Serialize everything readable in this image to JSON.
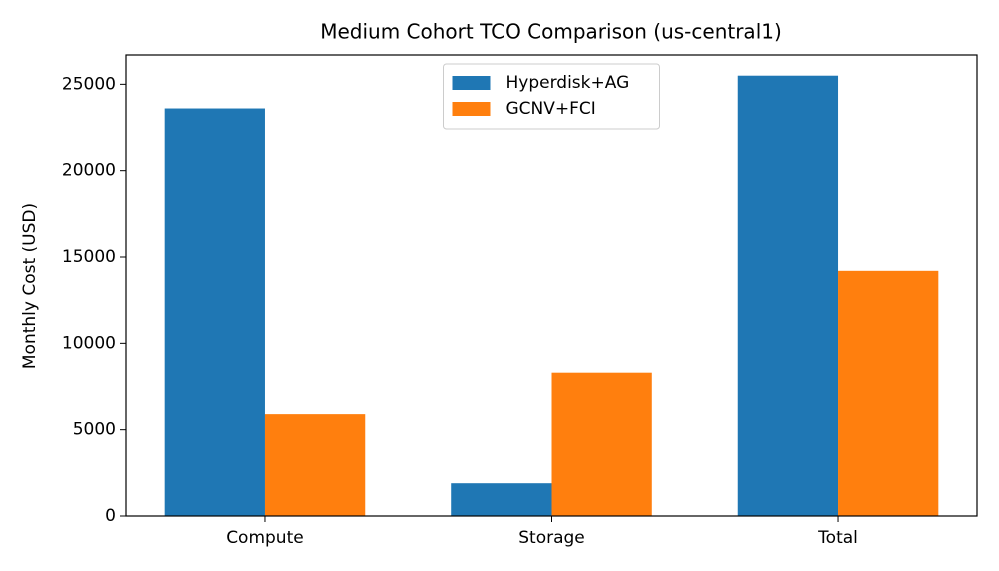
{
  "chart_data": {
    "type": "bar",
    "title": "Medium Cohort TCO Comparison (us-central1)",
    "ylabel": "Monthly Cost (USD)",
    "categories": [
      "Compute",
      "Storage",
      "Total"
    ],
    "series": [
      {
        "name": "Hyperdisk+AG",
        "color": "#1f77b4",
        "values": [
          23600,
          1900,
          25500
        ]
      },
      {
        "name": "GCNV+FCI",
        "color": "#ff7f0e",
        "values": [
          5900,
          8300,
          14200
        ]
      }
    ],
    "ylim": [
      0,
      26700
    ],
    "yticks": [
      0,
      5000,
      10000,
      15000,
      20000,
      25000
    ],
    "grid": false,
    "legend": "upper center"
  }
}
